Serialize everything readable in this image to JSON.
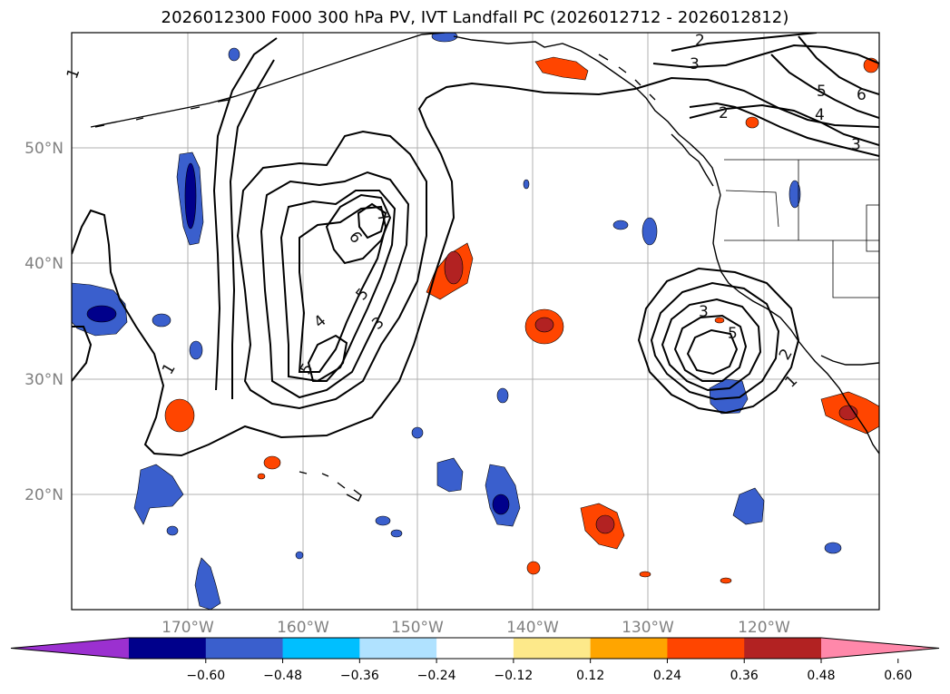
{
  "title": "2026012300 F000 300 hPa PV, IVT Landfall PC (2026012712 - 2026012812)",
  "latitude_labels": [
    "50°N",
    "40°N",
    "30°N",
    "20°N"
  ],
  "longitude_labels": [
    "170°W",
    "160°W",
    "150°W",
    "140°W",
    "130°W",
    "120°W"
  ],
  "contour_labels": [
    {
      "text": "1",
      "name": "contour-label-1-west-edge"
    },
    {
      "text": "1",
      "name": "contour-label-1-central"
    },
    {
      "text": "2",
      "name": "contour-label-2-top"
    },
    {
      "text": "3",
      "name": "contour-label-3-top"
    },
    {
      "text": "2",
      "name": "contour-label-2-gulf"
    },
    {
      "text": "3",
      "name": "contour-label-3-northeast"
    },
    {
      "text": "4",
      "name": "contour-label-4-northeast"
    },
    {
      "text": "5",
      "name": "contour-label-5-northeast"
    },
    {
      "text": "6",
      "name": "contour-label-6-northeast"
    },
    {
      "text": "7",
      "name": "contour-label-7-central"
    },
    {
      "text": "6",
      "name": "contour-label-6-central"
    },
    {
      "text": "5",
      "name": "contour-label-5-central"
    },
    {
      "text": "4",
      "name": "contour-label-4-central"
    },
    {
      "text": "3",
      "name": "contour-label-3-central"
    },
    {
      "text": "5",
      "name": "contour-label-5-south"
    },
    {
      "text": "3",
      "name": "contour-label-3-east"
    },
    {
      "text": "5",
      "name": "contour-label-5-east"
    },
    {
      "text": "2",
      "name": "contour-label-2-east"
    },
    {
      "text": "1",
      "name": "contour-label-1-east"
    }
  ],
  "colorbar": {
    "tick_labels": [
      "−0.60",
      "−0.48",
      "−0.36",
      "−0.24",
      "−0.12",
      "0.12",
      "0.24",
      "0.36",
      "0.48",
      "0.60"
    ],
    "colors": [
      "#9b30d0",
      "#00008b",
      "#3a5fcd",
      "#00bfff",
      "#b0e2ff",
      "#ffffff",
      "#fde98a",
      "#ffa500",
      "#ff4500",
      "#b22222",
      "#ff88aa"
    ]
  },
  "fill_colors": {
    "neg_strong": "#00008b",
    "neg_med": "#3a5fcd",
    "neg_light": "#00bfff",
    "neg_pale": "#b0e2ff",
    "pos_pale": "#fde98a",
    "pos_light": "#ffa500",
    "pos_med": "#ff4500",
    "pos_strong": "#b22222"
  }
}
